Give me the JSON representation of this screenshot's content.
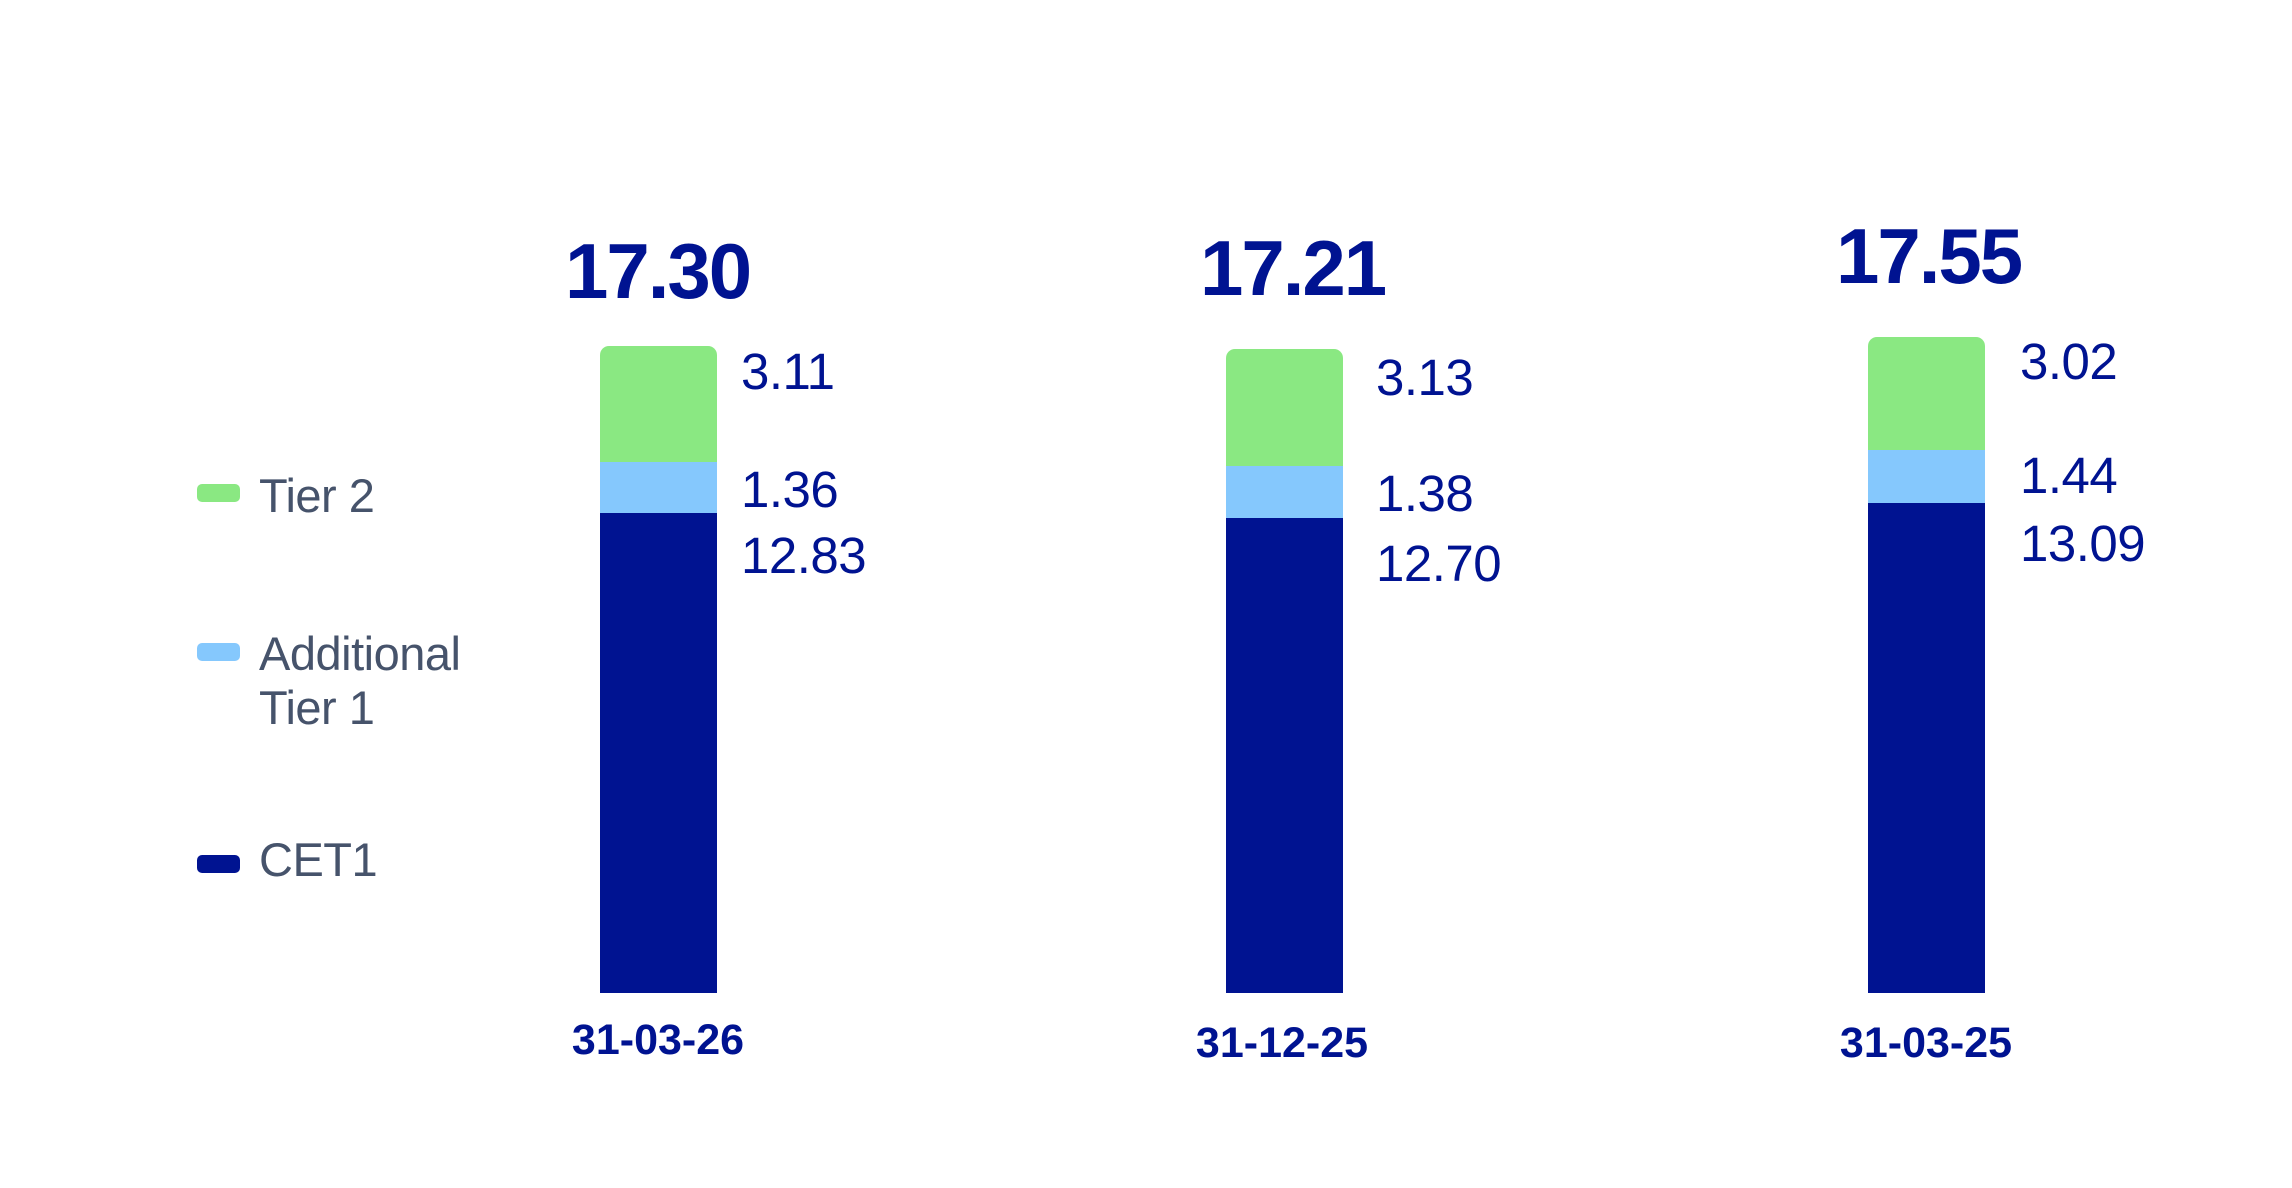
{
  "colors": {
    "tier2": "#8ae882",
    "additional_tier1": "#85c8fd",
    "cet1": "#001391",
    "text_navy": "#001391",
    "legend_text": "#46536b"
  },
  "legend": [
    {
      "label": "Tier 2",
      "color": "#8ae882"
    },
    {
      "label_line1": "Additional",
      "label_line2": "Tier 1",
      "color": "#85c8fd"
    },
    {
      "label": "CET1",
      "color": "#001391"
    }
  ],
  "bars": [
    {
      "date": "31-03-26",
      "total": "17.30",
      "tier2": "3.11",
      "at1": "1.36",
      "cet1": "12.83"
    },
    {
      "date": "31-12-25",
      "total": "17.21",
      "tier2": "3.13",
      "at1": "1.38",
      "cet1": "12.70"
    },
    {
      "date": "31-03-25",
      "total": "17.55",
      "tier2": "3.02",
      "at1": "1.44",
      "cet1": "13.09"
    }
  ],
  "chart_data": {
    "type": "bar",
    "stacked": true,
    "title": "",
    "xlabel": "",
    "ylabel": "",
    "categories": [
      "31-03-26",
      "31-12-25",
      "31-03-25"
    ],
    "series": [
      {
        "name": "CET1",
        "color": "#001391",
        "values": [
          12.83,
          12.7,
          13.09
        ]
      },
      {
        "name": "Additional Tier 1",
        "color": "#85c8fd",
        "values": [
          1.36,
          1.38,
          1.44
        ]
      },
      {
        "name": "Tier 2",
        "color": "#8ae882",
        "values": [
          3.11,
          3.13,
          3.02
        ]
      }
    ],
    "totals": [
      17.3,
      17.21,
      17.55
    ],
    "legend_position": "left",
    "grid": false,
    "y_axis_visible": false
  }
}
